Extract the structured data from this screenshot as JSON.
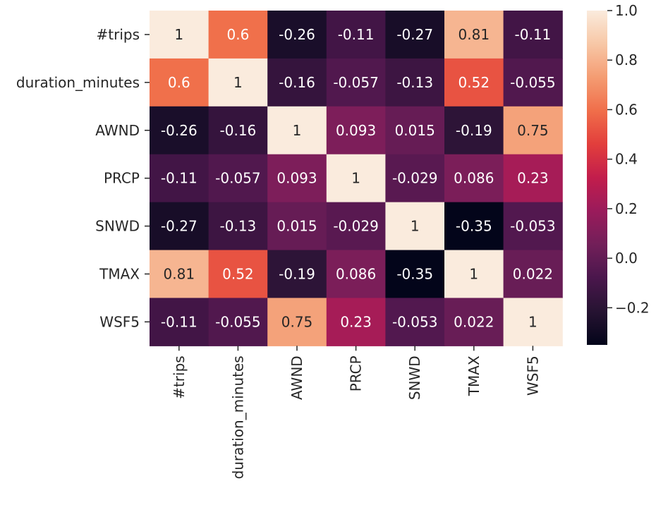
{
  "chart_data": {
    "type": "heatmap",
    "title": "",
    "xlabel": "",
    "ylabel": "",
    "x_labels": [
      "#trips",
      "duration_minutes",
      "AWND",
      "PRCP",
      "SNWD",
      "TMAX",
      "WSF5"
    ],
    "y_labels": [
      "#trips",
      "duration_minutes",
      "AWND",
      "PRCP",
      "SNWD",
      "TMAX",
      "WSF5"
    ],
    "values": [
      [
        1,
        0.6,
        -0.26,
        -0.11,
        -0.27,
        0.81,
        -0.11
      ],
      [
        0.6,
        1,
        -0.16,
        -0.057,
        -0.13,
        0.52,
        -0.055
      ],
      [
        -0.26,
        -0.16,
        1,
        0.093,
        0.015,
        -0.19,
        0.75
      ],
      [
        -0.11,
        -0.057,
        0.093,
        1,
        -0.029,
        0.086,
        0.23
      ],
      [
        -0.27,
        -0.13,
        0.015,
        -0.029,
        1,
        -0.35,
        -0.053
      ],
      [
        0.81,
        0.52,
        -0.19,
        0.086,
        -0.35,
        1,
        0.022
      ],
      [
        -0.11,
        -0.055,
        0.75,
        0.23,
        -0.053,
        0.022,
        1
      ]
    ],
    "annotations": [
      [
        "1",
        "0.6",
        "-0.26",
        "-0.11",
        "-0.27",
        "0.81",
        "-0.11"
      ],
      [
        "0.6",
        "1",
        "-0.16",
        "-0.057",
        "-0.13",
        "0.52",
        "-0.055"
      ],
      [
        "-0.26",
        "-0.16",
        "1",
        "0.093",
        "0.015",
        "-0.19",
        "0.75"
      ],
      [
        "-0.11",
        "-0.057",
        "0.093",
        "1",
        "-0.029",
        "0.086",
        "0.23"
      ],
      [
        "-0.27",
        "-0.13",
        "0.015",
        "-0.029",
        "1",
        "-0.35",
        "-0.053"
      ],
      [
        "0.81",
        "0.52",
        "-0.19",
        "0.086",
        "-0.35",
        "1",
        "0.022"
      ],
      [
        "-0.11",
        "-0.055",
        "0.75",
        "0.23",
        "-0.053",
        "0.022",
        "1"
      ]
    ],
    "colormap": "rocket",
    "vmin": -0.35,
    "vmax": 1.0,
    "colorbar": {
      "ticks": [
        1.0,
        0.8,
        0.6,
        0.4,
        0.2,
        0.0,
        -0.2
      ],
      "tick_labels": [
        "1.0",
        "0.8",
        "0.6",
        "0.4",
        "0.2",
        "0.0",
        "−0.2"
      ],
      "placement": "right"
    },
    "grid": false
  }
}
